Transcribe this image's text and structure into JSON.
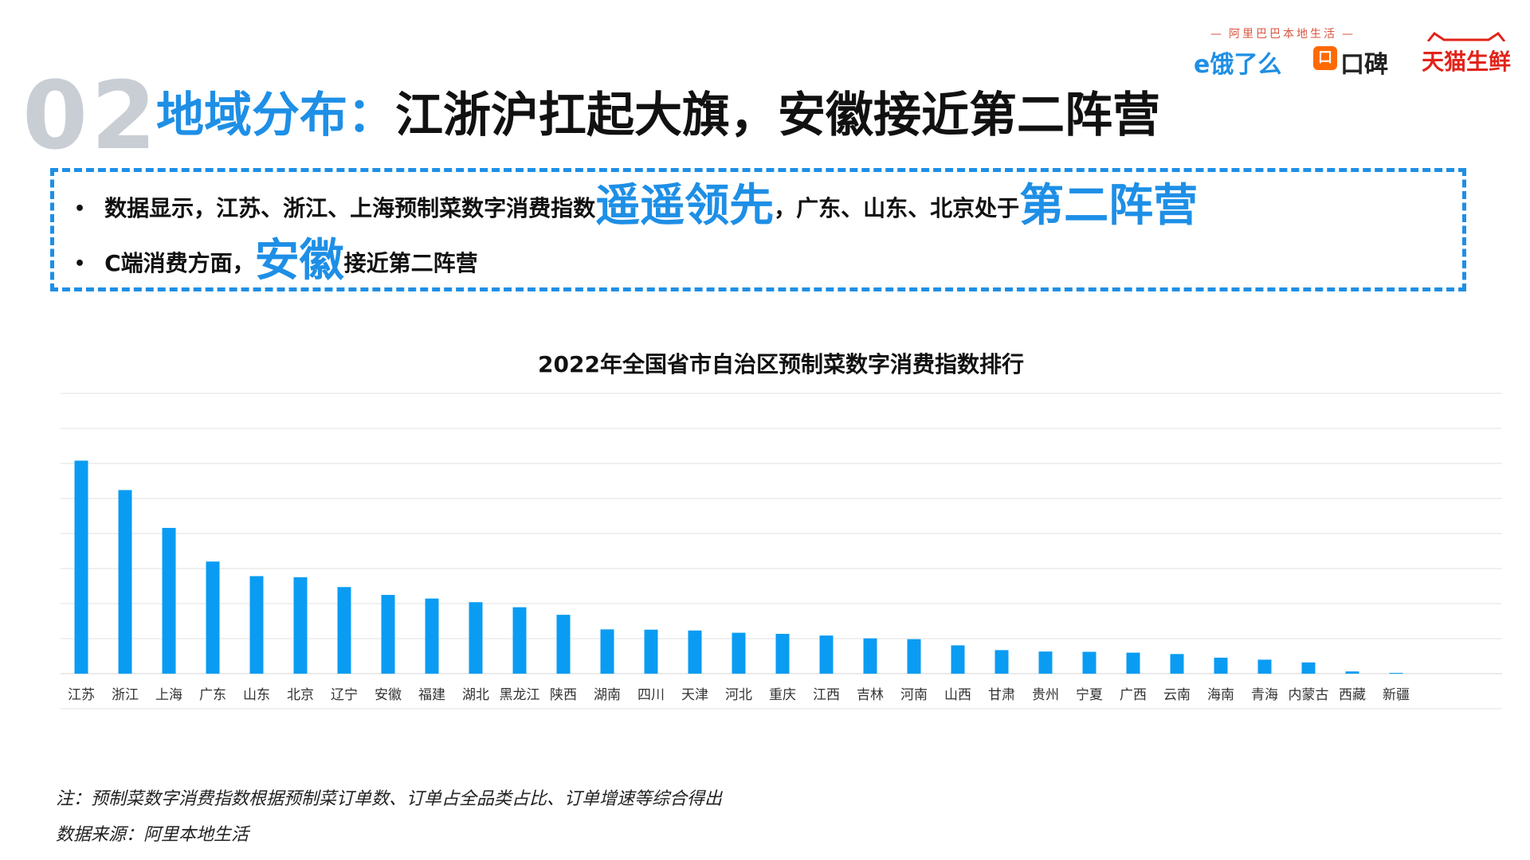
{
  "header": {
    "section_number": "02",
    "title_highlight": "地域分布：",
    "title_rest": "江浙沪扛起大旗，安徽接近第二阵营"
  },
  "brands": {
    "alibaba_local": "阿里巴巴本地生活",
    "eleme": "e饿了么",
    "koubei_icon": "口",
    "koubei": "口碑",
    "tmall_fresh": "天猫生鲜"
  },
  "summary": {
    "bullet": "•",
    "line1_a": "数据显示，江苏、浙江、上海预制菜数字消费指数",
    "line1_big1": "遥遥领先",
    "line1_b": "，广东、山东、北京处于",
    "line1_big2": "第二阵营",
    "line2_a": "C端消费方面，",
    "line2_big": "安徽",
    "line2_b": "接近第二阵营"
  },
  "chart_data": {
    "type": "bar",
    "title": "2022年全国省市自治区预制菜数字消费指数排行",
    "xlabel": "",
    "ylabel": "",
    "ylim": [
      0,
      100
    ],
    "grid": true,
    "color": "#0a9cf3",
    "categories": [
      "江苏",
      "浙江",
      "上海",
      "广东",
      "山东",
      "北京",
      "辽宁",
      "安徽",
      "福建",
      "湖北",
      "黑龙江",
      "陕西",
      "湖南",
      "四川",
      "天津",
      "河北",
      "重庆",
      "江西",
      "吉林",
      "河南",
      "山西",
      "甘肃",
      "贵州",
      "宁夏",
      "广西",
      "云南",
      "海南",
      "青海",
      "内蒙古",
      "西藏",
      "新疆"
    ],
    "values": [
      76,
      65.5,
      52,
      40,
      34.8,
      34.4,
      30.9,
      28.1,
      26.8,
      25.5,
      23.7,
      21,
      15.8,
      15.7,
      15.4,
      14.6,
      14.2,
      13.6,
      12.6,
      12.3,
      10.1,
      8.4,
      7.9,
      7.8,
      7.5,
      7,
      5.7,
      5,
      4,
      0.8,
      0.2
    ]
  },
  "notes": {
    "note1": "注：预制菜数字消费指数根据预制菜订单数、订单占全品类占比、订单增速等综合得出",
    "source": "数据来源：阿里本地生活"
  }
}
